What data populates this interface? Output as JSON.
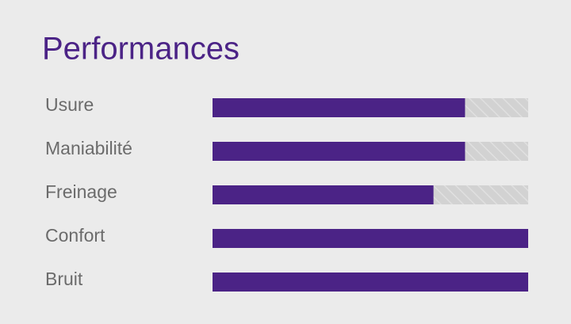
{
  "chart_data": {
    "type": "bar",
    "orientation": "horizontal",
    "title": "Performances",
    "categories": [
      "Usure",
      "Maniabilité",
      "Freinage",
      "Confort",
      "Bruit"
    ],
    "values": [
      80,
      80,
      70,
      100,
      100
    ],
    "color": "#4b2386",
    "xlim": [
      0,
      100
    ]
  }
}
